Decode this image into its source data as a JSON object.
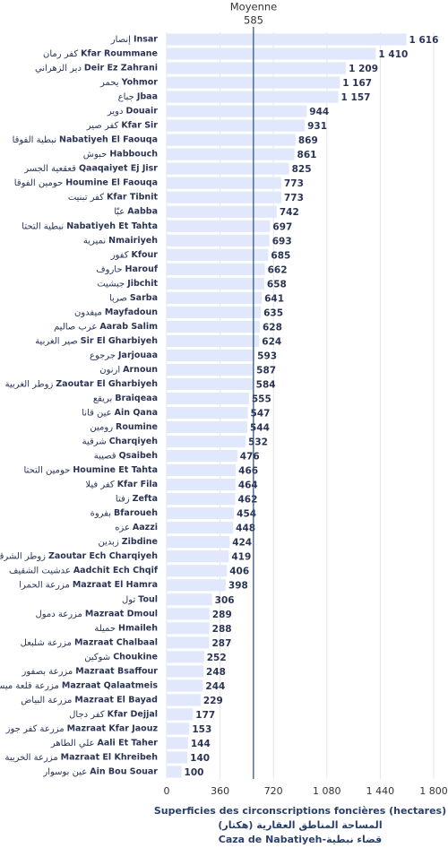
{
  "chart_data": {
    "type": "barh",
    "categories": [
      "Insar",
      "Kfar Roummane",
      "Deir Ez Zahrani",
      "Yohmor",
      "Jbaa",
      "Douair",
      "Kfar Sir",
      "Nabatiyeh El Faouqa",
      "Habbouch",
      "Qaaqaiyet Ej Jisr",
      "Houmine El Faouqa",
      "Kfar Tibnit",
      "Aabba",
      "Nabatiyeh Et Tahta",
      "Nmairiyeh",
      "Kfour",
      "Harouf",
      "Jibchit",
      "Sarba",
      "Mayfadoun",
      "Aarab Salim",
      "Sir El Gharbiyeh",
      "Jarjouaa",
      "Arnoun",
      "Zaoutar El Gharbiyeh",
      "Braiqeaa",
      "Ain Qana",
      "Roumine",
      "Charqiyeh",
      "Qsaibeh",
      "Houmine Et Tahta",
      "Kfar Fila",
      "Zefta",
      "Bfaroueh",
      "Aazzi",
      "Zibdine",
      "Zaoutar Ech Charqiyeh",
      "Aadchit Ech Chqif",
      "Mazraat El Hamra",
      "Toul",
      "Mazraat Dmoul",
      "Hmaileh",
      "Mazraat Chalbaal",
      "Choukine",
      "Mazraat Bsaffour",
      "Mazraat Qalaatmeis",
      "Mazraat El Bayad",
      "Kfar Dejjal",
      "Mazraat Kfar Jaouz",
      "Aali Et Taher",
      "Mazraat El Khreibeh",
      "Ain Bou Souar"
    ],
    "categories_ar": [
      "إنصار",
      "كفر رمان",
      "دير الزهراني",
      "يحمر",
      "جباع",
      "دوير",
      "كفر صير",
      "نبطية الفوقا",
      "حبوش",
      "قعقعية الجسر",
      "حومين الفوقا",
      "كفر تبنيت",
      "عبّا",
      "نبطية التحتا",
      "نميرية",
      "كفور",
      "حاروف",
      "جبشيت",
      "صربا",
      "ميفدون",
      "عرب صاليم",
      "صير الغربية",
      "جرجوع",
      "ارنون",
      "زوطر الغربية",
      "بريقع",
      "عين قانا",
      "رومين",
      "شرقية",
      "قصيبة",
      "حومين التحتا",
      "كفر فيلا",
      "زفتا",
      "بفروة",
      "عزه",
      "زبدين",
      "زوطر الشرقية",
      "عدشيت الشقيف",
      "مزرعة الحمرا",
      "تول",
      "مزرعة دمول",
      "حميلة",
      "مزرعة شلبعل",
      "شوكين",
      "مزرعة بصفور",
      "مزرعة قلعة ميس",
      "مزرعة البياض",
      "كفر دجال",
      "مزرعة كفر جوز",
      "علي الطاهر",
      "مزرعة الخريبة",
      "عين بوسوار"
    ],
    "values": [
      1616,
      1410,
      1209,
      1167,
      1157,
      944,
      931,
      869,
      861,
      825,
      773,
      773,
      742,
      697,
      693,
      685,
      662,
      658,
      641,
      635,
      628,
      624,
      593,
      587,
      584,
      555,
      547,
      544,
      532,
      476,
      466,
      464,
      462,
      454,
      448,
      424,
      419,
      406,
      398,
      306,
      289,
      288,
      287,
      252,
      248,
      244,
      229,
      177,
      153,
      144,
      140,
      100
    ],
    "value_labels": [
      "1 616",
      "1 410",
      "1 209",
      "1 167",
      "1 157",
      "944",
      "931",
      "869",
      "861",
      "825",
      "773",
      "773",
      "742",
      "697",
      "693",
      "685",
      "662",
      "658",
      "641",
      "635",
      "628",
      "624",
      "593",
      "587",
      "584",
      "555",
      "547",
      "544",
      "532",
      "476",
      "466",
      "464",
      "462",
      "454",
      "448",
      "424",
      "419",
      "406",
      "398",
      "306",
      "289",
      "288",
      "287",
      "252",
      "248",
      "244",
      "229",
      "177",
      "153",
      "144",
      "140",
      "100"
    ],
    "color": "#e1e8fb",
    "xlim": [
      0,
      1800
    ],
    "xticks": [
      0,
      360,
      720,
      {
        "value": 1080,
        "label": "1 080"
      },
      {
        "value": 1440,
        "label": "1 440"
      },
      {
        "value": 1800,
        "label": "1 800"
      }
    ],
    "grid": true,
    "mean": {
      "label": "Moyenne",
      "value": 585,
      "color": "#2c4a7a"
    },
    "xlabel": [
      "Superficies des circonscriptions foncières (hectares)",
      "المساحة المناطق العقارية (هكتار)",
      "Caza de Nabatiyeh-قضاء نبطية"
    ]
  }
}
